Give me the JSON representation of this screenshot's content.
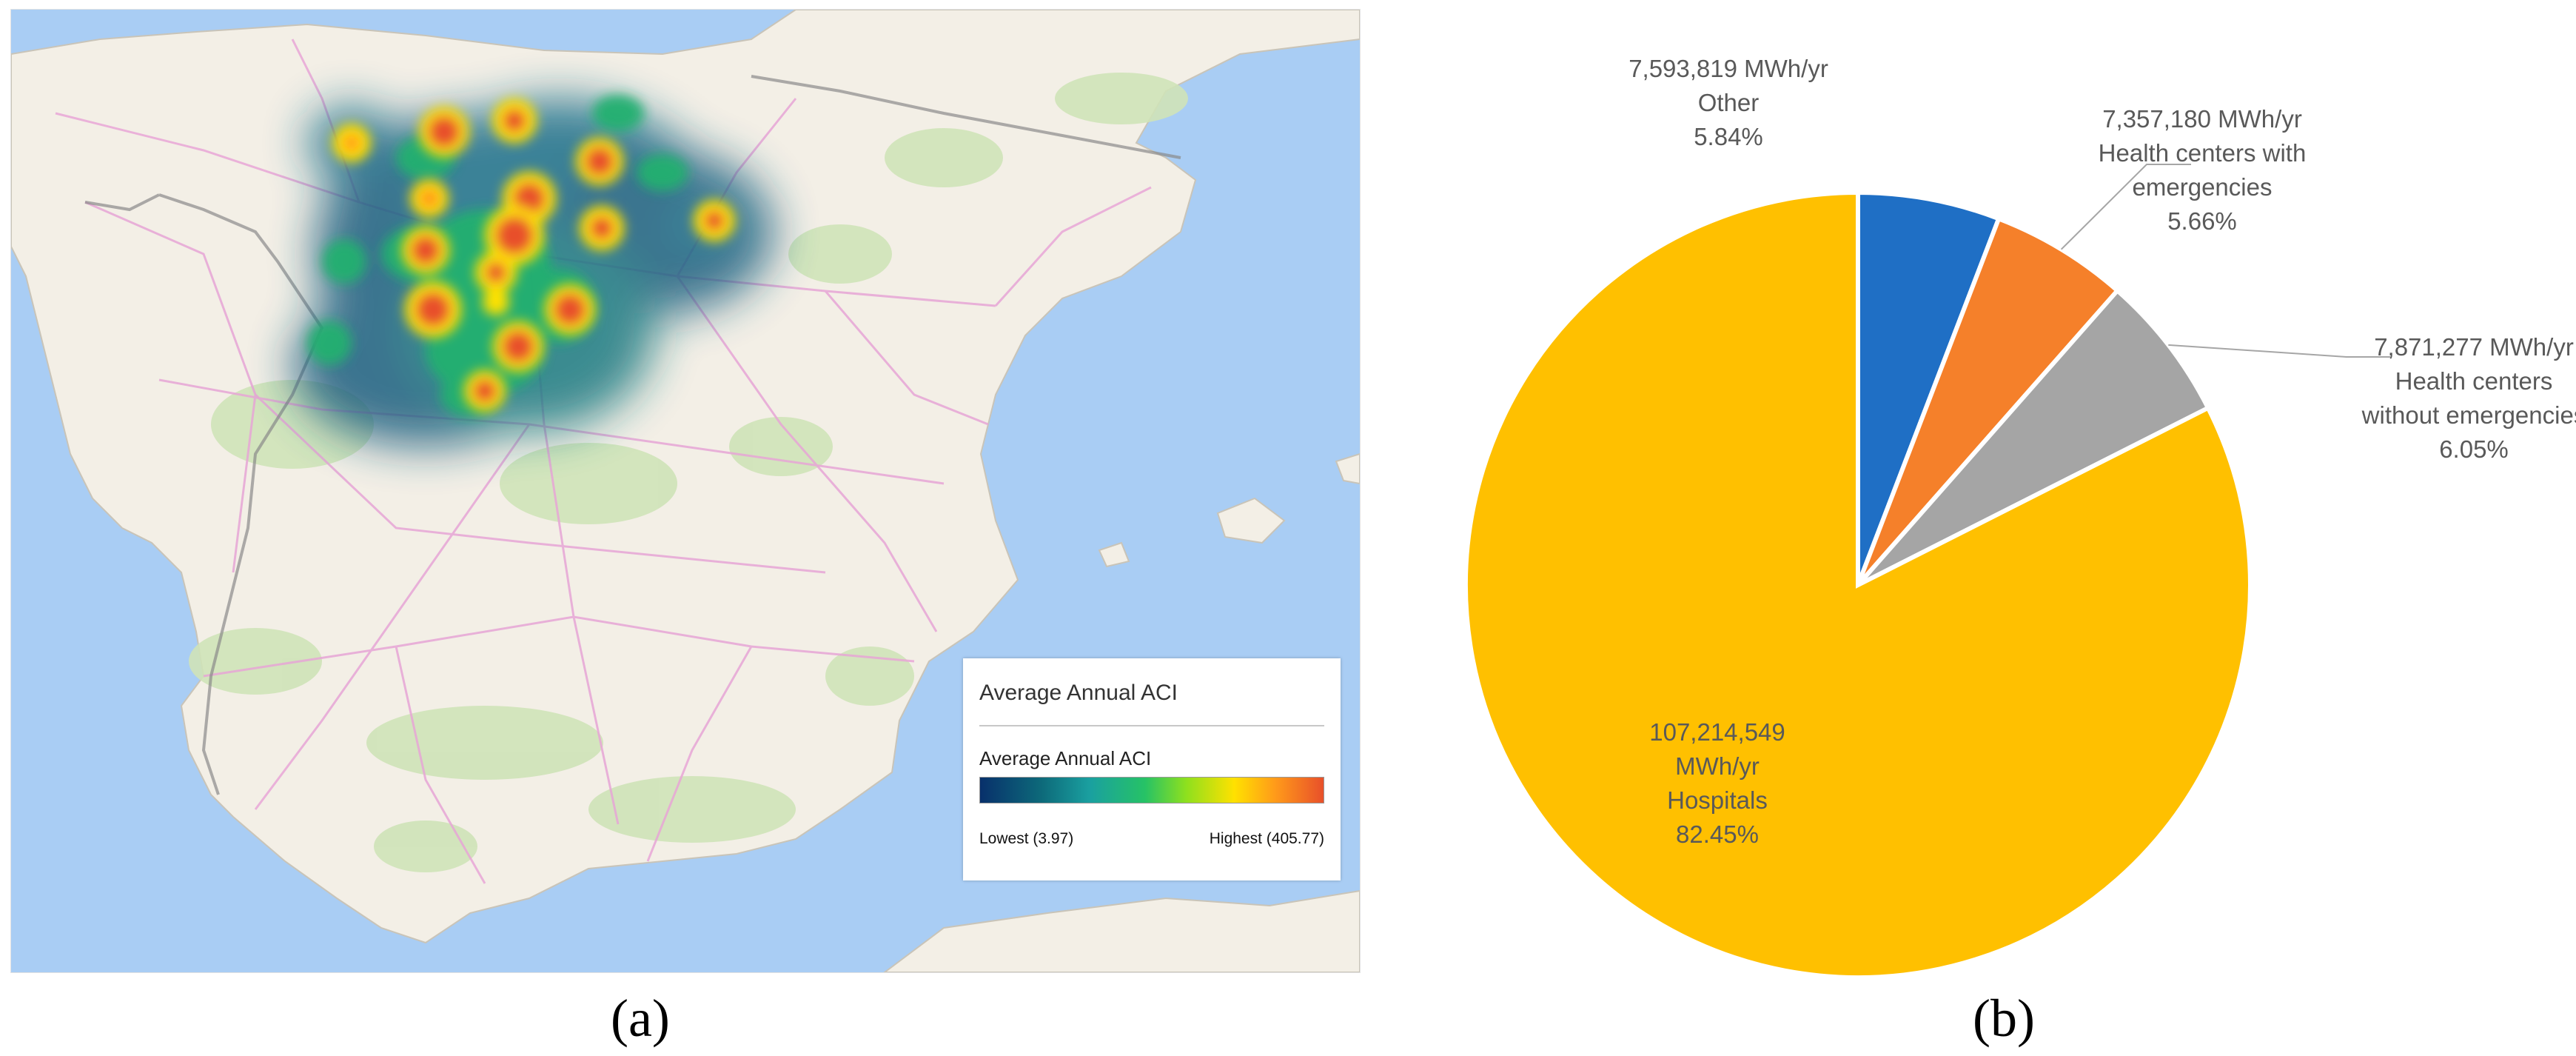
{
  "map": {
    "legend_title": "Average Annual ACI",
    "legend_subtitle": "Average Annual ACI",
    "low_label": "Lowest (3.97)",
    "high_label": "Highest (405.77)",
    "gradient_colors": [
      "#08306b",
      "#1aa0a0",
      "#26c266",
      "#8ee01e",
      "#ffe100",
      "#ff9a1a",
      "#e8502a"
    ]
  },
  "panel_labels": {
    "a": "(a)",
    "b": "(b)"
  },
  "chart_data": {
    "type": "pie",
    "slices": [
      {
        "name": "Other",
        "value": 7593819,
        "unit": "MWh/yr",
        "percent": 5.84,
        "value_label": "7,593,819 MWh/yr",
        "lines": [
          "Other"
        ],
        "percent_label": "5.84%",
        "color": "#1f6fc5"
      },
      {
        "name": "Health centers with emergencies",
        "value": 7357180,
        "unit": "MWh/yr",
        "percent": 5.66,
        "value_label": "7,357,180 MWh/yr",
        "lines": [
          "Health centers with",
          "emergencies"
        ],
        "percent_label": "5.66%",
        "color": "#f5802a"
      },
      {
        "name": "Health centers without emergencies",
        "value": 7871277,
        "unit": "MWh/yr",
        "percent": 6.05,
        "value_label": "7,871,277 MWh/yr",
        "lines": [
          "Health centers",
          "without emergencies"
        ],
        "percent_label": "6.05%",
        "color": "#a5a5a5"
      },
      {
        "name": "Hospitals",
        "value": 107214549,
        "unit": "MWh/yr",
        "percent": 82.45,
        "value_label": "107,214,549",
        "lines": [
          "MWh/yr",
          "Hospitals"
        ],
        "percent_label": "82.45%",
        "color": "#ffc000"
      }
    ]
  }
}
